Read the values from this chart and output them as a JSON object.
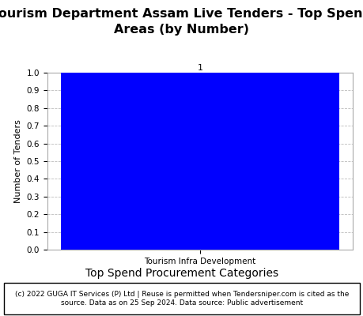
{
  "title_line1": "Tourism Department Assam Live Tenders - Top Spend",
  "title_line2": "Areas (by Number)",
  "categories": [
    "Tourism Infra Development"
  ],
  "values": [
    1
  ],
  "bar_color": "#0000FF",
  "ylabel": "Number of Tenders",
  "xlabel": "Top Spend Procurement Categories",
  "ylim": [
    0.0,
    1.0
  ],
  "yticks": [
    0.0,
    0.1,
    0.2,
    0.3,
    0.4,
    0.5,
    0.6,
    0.7,
    0.8,
    0.9,
    1.0
  ],
  "bar_label_fontsize": 8,
  "title_fontsize": 11.5,
  "xlabel_fontsize": 10,
  "ylabel_fontsize": 8,
  "tick_fontsize": 7.5,
  "footer_text": "(c) 2022 GUGA IT Services (P) Ltd | Reuse is permitted when Tendersniper.com is cited as the\nsource. Data as on 25 Sep 2024. Data source: Public advertisement",
  "footer_fontsize": 6.5,
  "grid_color": "#bbbbbb",
  "background_color": "#ffffff"
}
